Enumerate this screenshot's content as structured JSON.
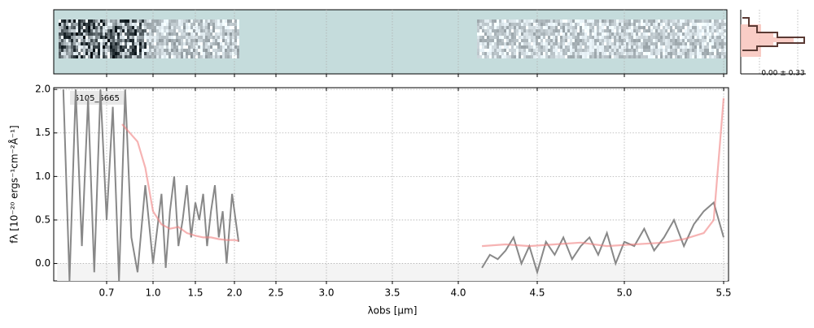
{
  "chart_data": {
    "type": "line",
    "label": "5105_5665",
    "xlabel": "λobs [μm]",
    "ylabel": "fλ [10⁻²⁰ ergs⁻¹cm⁻²Å⁻¹]",
    "annotation": "0.00 ± 0.33",
    "xlim": [
      0.38,
      5.52
    ],
    "ylim": [
      -0.2,
      2.02
    ],
    "xticks": [
      0.7,
      {
        "value": 1,
        "label": "1.0"
      },
      1.5,
      {
        "value": 2,
        "label": "2.0"
      },
      2.5,
      {
        "value": 3,
        "label": "3.0"
      },
      3.5,
      {
        "value": 4,
        "label": "4.0"
      },
      4.5,
      {
        "value": 5,
        "label": "5.0"
      },
      5.5
    ],
    "yticks": [
      {
        "value": 0,
        "label": "0.0"
      },
      0.5,
      {
        "value": 1,
        "label": "1.0"
      },
      1.5,
      {
        "value": 2,
        "label": "2.0"
      }
    ],
    "grid": true,
    "series": [
      {
        "color": "#888888",
        "x": [
          0.42,
          0.46,
          0.5,
          0.54,
          0.58,
          0.62,
          0.66,
          0.7,
          0.74,
          0.78,
          0.82,
          0.86,
          0.9,
          0.95,
          1.0,
          1.05,
          1.1,
          1.15,
          1.2,
          1.25,
          1.3,
          1.35,
          1.4,
          1.45,
          1.5,
          1.55,
          1.6,
          1.65,
          1.7,
          1.75,
          1.8,
          1.85,
          1.9,
          1.97,
          2.05,
          null,
          4.15,
          4.2,
          4.25,
          4.3,
          4.35,
          4.4,
          4.45,
          4.5,
          4.55,
          4.6,
          4.65,
          4.7,
          4.75,
          4.8,
          4.85,
          4.9,
          4.95,
          5.0,
          5.05,
          5.1,
          5.15,
          5.2,
          5.25,
          5.3,
          5.35,
          5.4,
          5.45,
          5.5
        ],
        "values": [
          2.0,
          -0.2,
          2.0,
          0.2,
          1.9,
          -0.1,
          2.0,
          0.5,
          1.8,
          -0.2,
          2.0,
          0.3,
          -0.1,
          0.9,
          0.0,
          0.4,
          0.8,
          -0.05,
          0.6,
          1.0,
          0.2,
          0.5,
          0.9,
          0.3,
          0.7,
          0.5,
          0.8,
          0.2,
          0.6,
          0.9,
          0.3,
          0.6,
          0.0,
          0.8,
          0.25,
          null,
          -0.05,
          0.1,
          0.05,
          0.15,
          0.3,
          0.0,
          0.2,
          -0.1,
          0.25,
          0.1,
          0.3,
          0.05,
          0.2,
          0.3,
          0.1,
          0.35,
          0.0,
          0.25,
          0.2,
          0.4,
          0.15,
          0.3,
          0.5,
          0.2,
          0.45,
          0.6,
          0.7,
          0.3
        ]
      },
      {
        "color": "#f08080",
        "x": [
          0.8,
          0.85,
          0.9,
          0.95,
          1.0,
          1.1,
          1.2,
          1.3,
          1.4,
          1.5,
          1.6,
          1.7,
          1.8,
          1.9,
          2.0,
          2.05,
          null,
          4.15,
          4.3,
          4.45,
          4.6,
          4.75,
          4.9,
          5.05,
          5.2,
          5.3,
          5.4,
          5.45,
          5.5
        ],
        "values": [
          1.6,
          1.5,
          1.4,
          1.1,
          0.6,
          0.45,
          0.4,
          0.42,
          0.35,
          0.32,
          0.3,
          0.3,
          0.28,
          0.27,
          0.27,
          0.26,
          null,
          0.2,
          0.22,
          0.2,
          0.22,
          0.24,
          0.2,
          0.22,
          0.24,
          0.28,
          0.35,
          0.5,
          1.9
        ]
      }
    ]
  }
}
